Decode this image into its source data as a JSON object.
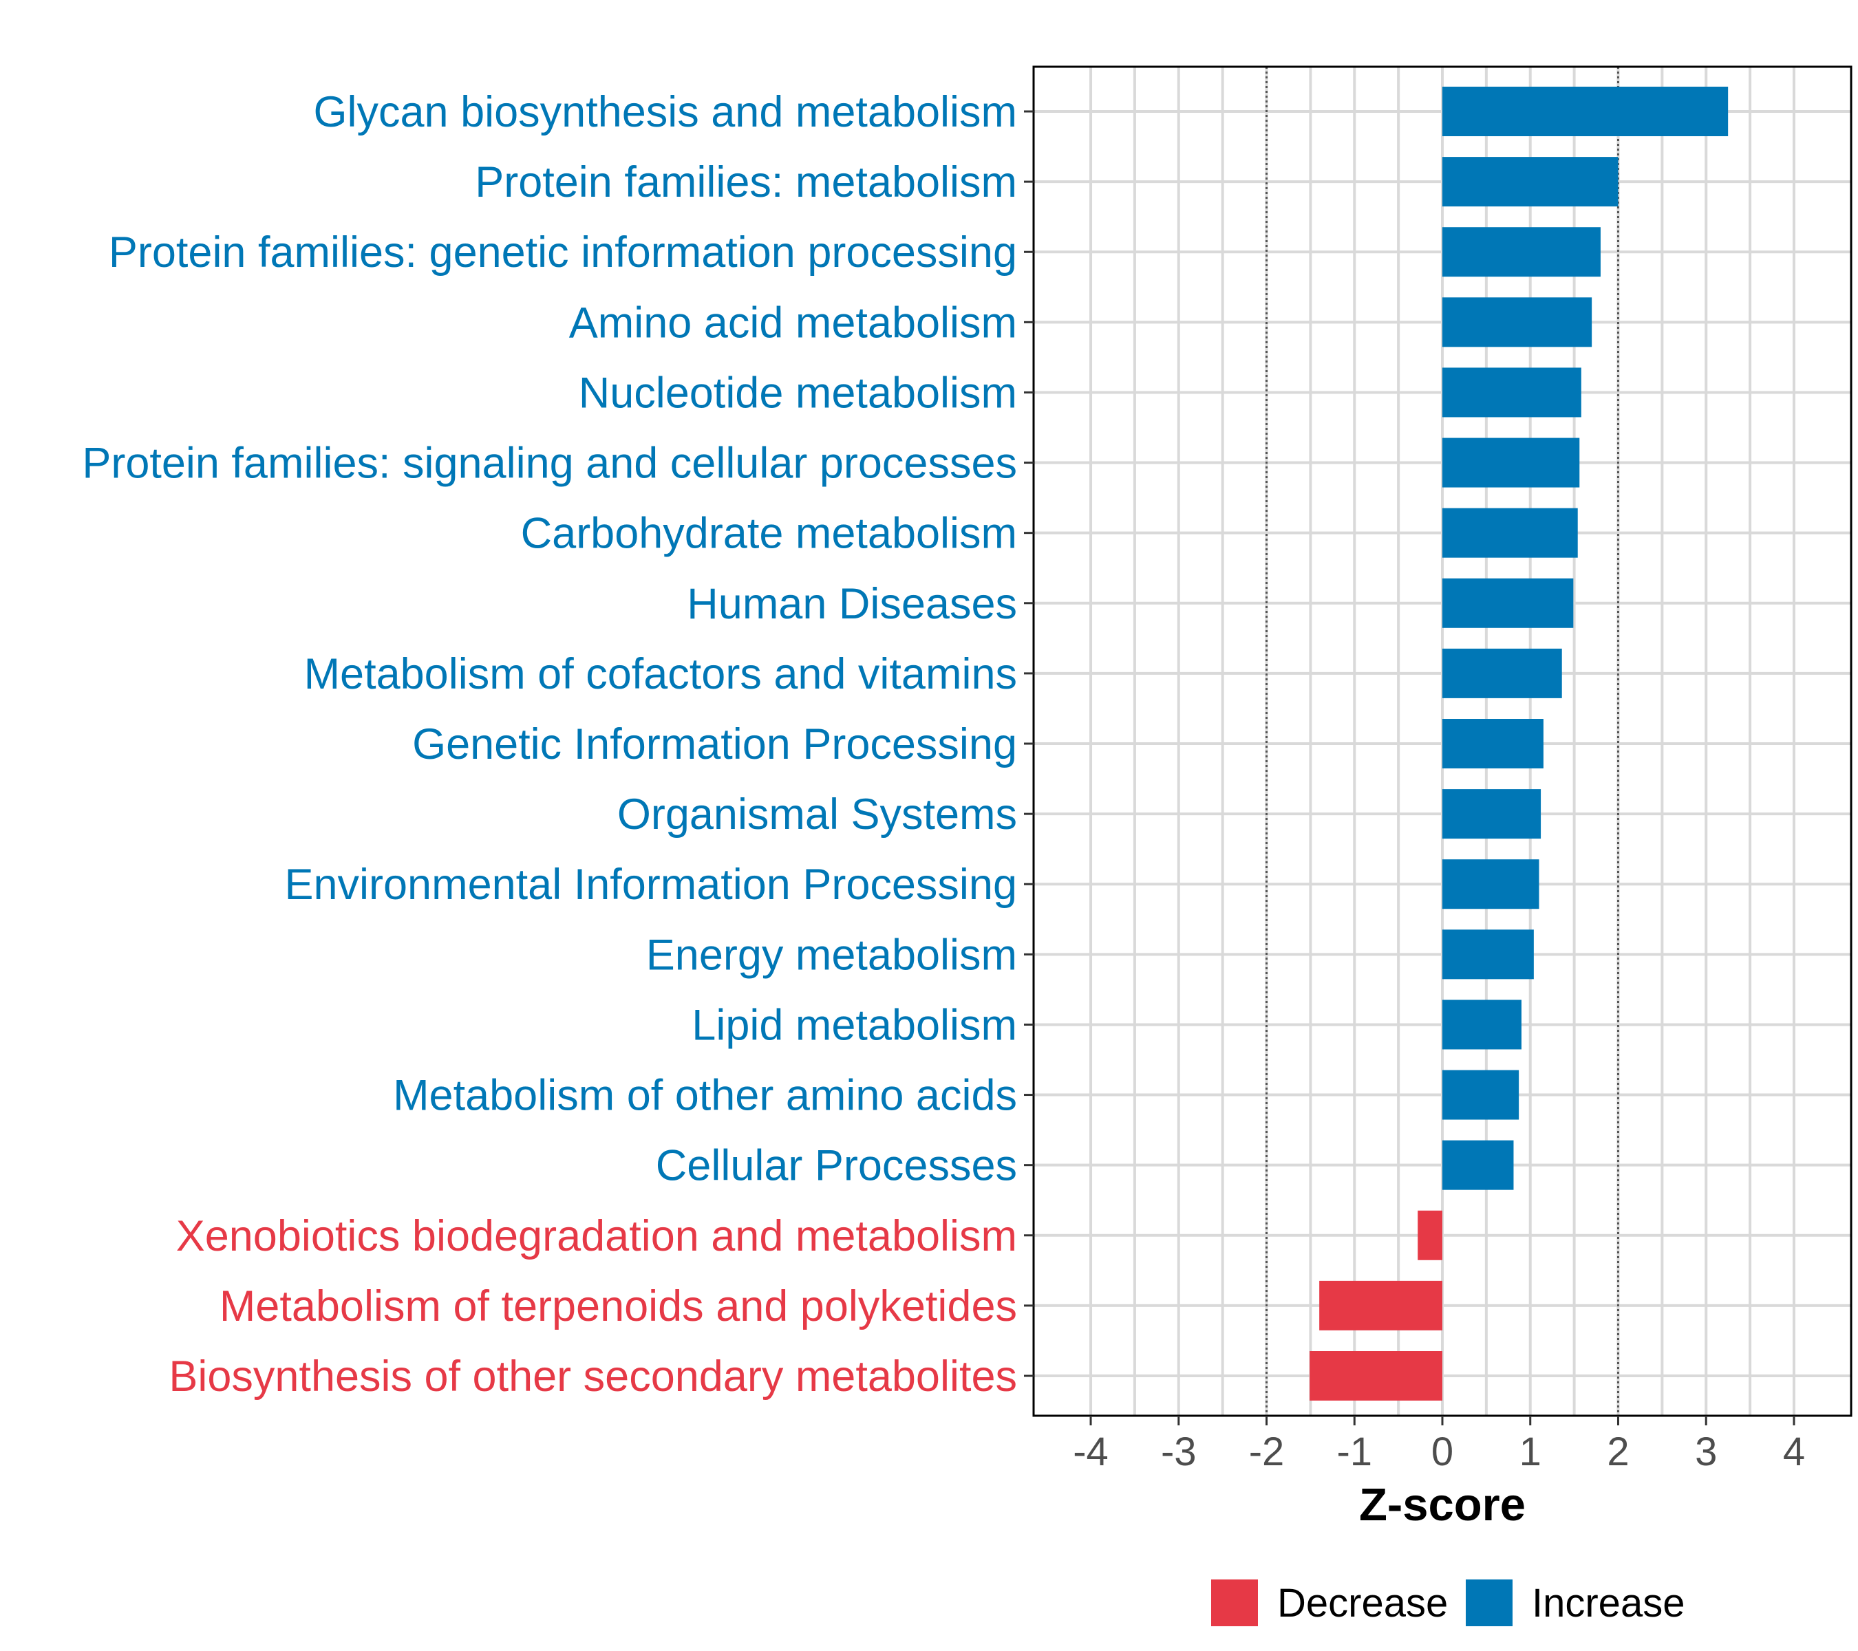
{
  "chart_data": {
    "type": "bar",
    "orientation": "horizontal",
    "categories": [
      "Glycan biosynthesis and metabolism",
      "Protein families: metabolism",
      "Protein families: genetic information processing",
      "Amino acid metabolism",
      "Nucleotide metabolism",
      "Protein families: signaling and cellular processes",
      "Carbohydrate metabolism",
      "Human Diseases",
      "Metabolism of cofactors and vitamins",
      "Genetic Information Processing",
      "Organismal Systems",
      "Environmental Information Processing",
      "Energy metabolism",
      "Lipid metabolism",
      "Metabolism of other amino acids",
      "Cellular Processes",
      "Xenobiotics biodegradation and metabolism",
      "Metabolism of terpenoids and polyketides",
      "Biosynthesis of other secondary metabolites"
    ],
    "values": [
      3.25,
      2.0,
      1.8,
      1.7,
      1.58,
      1.56,
      1.54,
      1.49,
      1.36,
      1.15,
      1.12,
      1.1,
      1.04,
      0.9,
      0.87,
      0.81,
      -0.28,
      -1.4,
      -1.51
    ],
    "groups": [
      "Increase",
      "Increase",
      "Increase",
      "Increase",
      "Increase",
      "Increase",
      "Increase",
      "Increase",
      "Increase",
      "Increase",
      "Increase",
      "Increase",
      "Increase",
      "Increase",
      "Increase",
      "Increase",
      "Decrease",
      "Decrease",
      "Decrease"
    ],
    "xlabel": "Z-score",
    "xlim": [
      -4.65,
      4.65
    ],
    "xticks": [
      -4,
      -3,
      -2,
      -1,
      0,
      1,
      2,
      3,
      4
    ],
    "reference_lines": [
      -2,
      2
    ],
    "grid": true,
    "legend": {
      "placement": "bottom",
      "entries": [
        {
          "label": "Decrease",
          "color": "#e63946"
        },
        {
          "label": "Increase",
          "color": "#0077b6"
        }
      ]
    },
    "colors": {
      "Increase": "#0077b6",
      "Decrease": "#e63946"
    }
  }
}
